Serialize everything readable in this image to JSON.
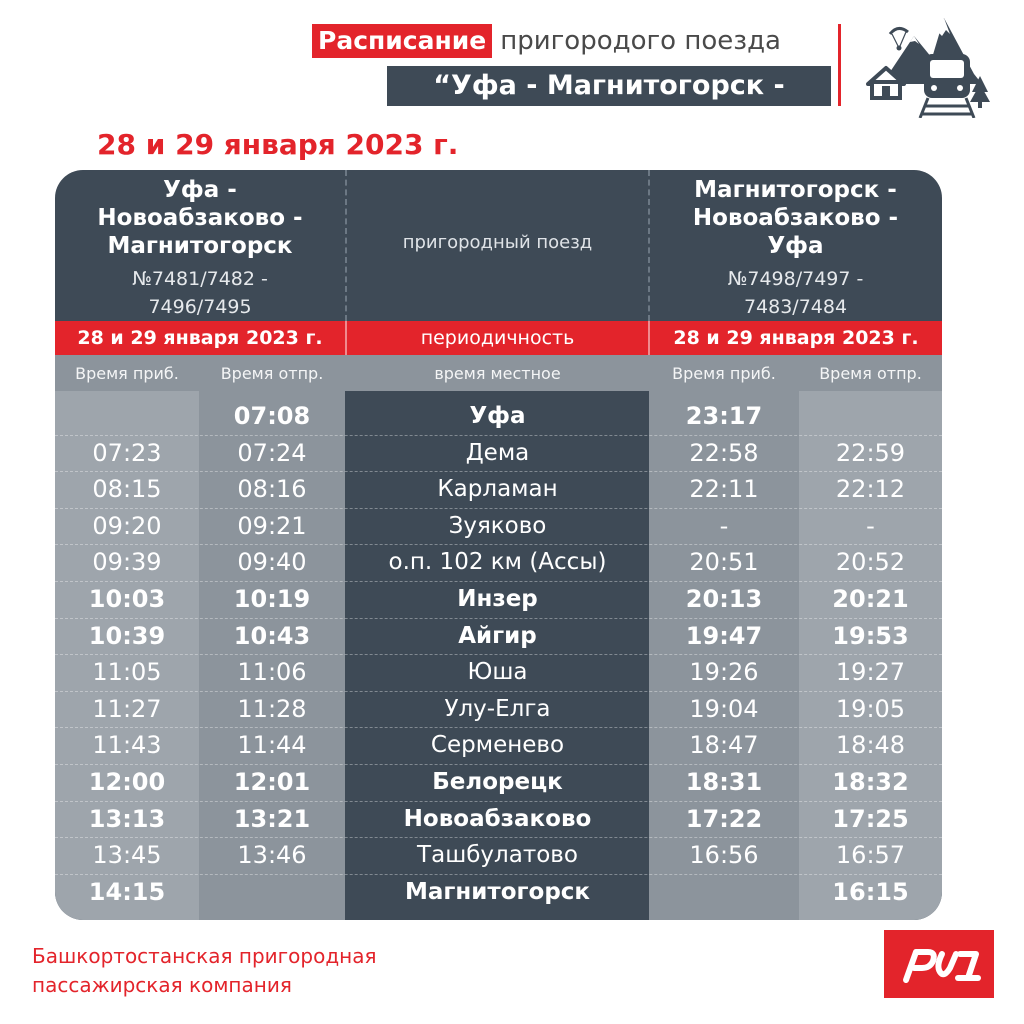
{
  "header": {
    "title_highlight": "Расписание",
    "title_rest": "пригородого поезда",
    "route_title": "“Уфа - Магнитогорск - Уфа”"
  },
  "date_heading": "28 и 29 января 2023 г.",
  "table": {
    "left": {
      "route_lines": [
        "Уфа -",
        "Новоабзаково -",
        "Магнитогорск"
      ],
      "train_numbers": [
        "№7481/7482 -",
        "7496/7495"
      ],
      "date": "28 и 29 января 2023 г."
    },
    "center": {
      "train_type": "пригородный поезд",
      "periodicity": "периодичность",
      "local_time": "время местное"
    },
    "right": {
      "route_lines": [
        "Магнитогорск -",
        "Новоабзаково -",
        "Уфа"
      ],
      "train_numbers": [
        "№7498/7497 -",
        "7483/7484"
      ],
      "date": "28 и 29 января 2023 г."
    },
    "column_headers": {
      "arr_left": "Время приб.",
      "dep_left": "Время отпр.",
      "arr_right": "Время приб.",
      "dep_right": "Время отпр."
    },
    "rows": [
      {
        "arr1": "",
        "dep1": "07:08",
        "station": "Уфа",
        "arr2": "23:17",
        "dep2": "",
        "bold": true
      },
      {
        "arr1": "07:23",
        "dep1": "07:24",
        "station": "Дема",
        "arr2": "22:58",
        "dep2": "22:59",
        "bold": false
      },
      {
        "arr1": "08:15",
        "dep1": "08:16",
        "station": "Карламан",
        "arr2": "22:11",
        "dep2": "22:12",
        "bold": false
      },
      {
        "arr1": "09:20",
        "dep1": "09:21",
        "station": "Зуяково",
        "arr2": "-",
        "dep2": "-",
        "bold": false
      },
      {
        "arr1": "09:39",
        "dep1": "09:40",
        "station": "о.п. 102 км (Ассы)",
        "arr2": "20:51",
        "dep2": "20:52",
        "bold": false
      },
      {
        "arr1": "10:03",
        "dep1": "10:19",
        "station": "Инзер",
        "arr2": "20:13",
        "dep2": "20:21",
        "bold": true
      },
      {
        "arr1": "10:39",
        "dep1": "10:43",
        "station": "Айгир",
        "arr2": "19:47",
        "dep2": "19:53",
        "bold": true
      },
      {
        "arr1": "11:05",
        "dep1": "11:06",
        "station": "Юша",
        "arr2": "19:26",
        "dep2": "19:27",
        "bold": false
      },
      {
        "arr1": "11:27",
        "dep1": "11:28",
        "station": "Улу-Елга",
        "arr2": "19:04",
        "dep2": "19:05",
        "bold": false
      },
      {
        "arr1": "11:43",
        "dep1": "11:44",
        "station": "Серменево",
        "arr2": "18:47",
        "dep2": "18:48",
        "bold": false
      },
      {
        "arr1": "12:00",
        "dep1": "12:01",
        "station": "Белорецк",
        "arr2": "18:31",
        "dep2": "18:32",
        "bold": true
      },
      {
        "arr1": "13:13",
        "dep1": "13:21",
        "station": "Новоабзаково",
        "arr2": "17:22",
        "dep2": "17:25",
        "bold": true
      },
      {
        "arr1": "13:45",
        "dep1": "13:46",
        "station": "Ташбулатово",
        "arr2": "16:56",
        "dep2": "16:57",
        "bold": false
      },
      {
        "arr1": "14:15",
        "dep1": "",
        "station": "Магнитогорск",
        "arr2": "",
        "dep2": "16:15",
        "bold": true
      }
    ]
  },
  "footer": {
    "company_lines": [
      "Башкортостанская пригородная",
      "пассажирская компания"
    ]
  },
  "colors": {
    "red": "#e3242b",
    "dark": "#3e4a56",
    "gray": "#8c949c",
    "light_gray": "#9ea5ac"
  },
  "icons": {
    "header_icon": "mountain-house-train-icon",
    "logo": "rzd-logo-icon"
  }
}
